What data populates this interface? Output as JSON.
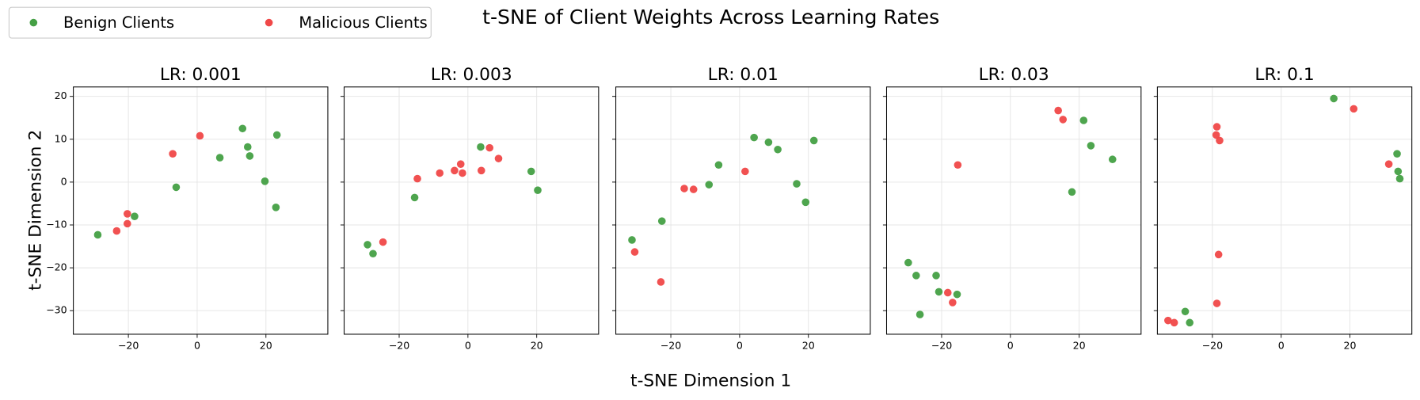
{
  "title": "t-SNE of Client Weights Across Learning Rates",
  "xlabel": "t-SNE Dimension 1",
  "ylabel": "t-SNE Dimension 2",
  "legend": "upper left",
  "chart_data": [
    {
      "type": "scatter",
      "title": "LR: 0.001",
      "xlim": [
        -36,
        38
      ],
      "ylim": [
        -35.5,
        22.2
      ],
      "xticks": [
        {
          "value": -20,
          "label": "−20"
        },
        0,
        20
      ],
      "yticks": [
        {
          "value": -30,
          "label": "−30"
        },
        {
          "value": -20,
          "label": "−20"
        },
        {
          "value": -10,
          "label": "−10"
        },
        0,
        10,
        20
      ],
      "ytick_labels": true,
      "grid": true,
      "series": [
        {
          "name": "Benign Clients",
          "color": "#45a045",
          "x": [
            13.2,
            14.7,
            15.3,
            23.2,
            6.6,
            19.7,
            22.9,
            -6.1,
            -18.2,
            -28.9
          ],
          "y": [
            12.5,
            8.2,
            6.1,
            11,
            5.7,
            0.2,
            -5.9,
            -1.2,
            -8,
            -12.3
          ]
        },
        {
          "name": "Malicious Clients",
          "color": "#f04848",
          "x": [
            0.8,
            -7.1,
            -20.3,
            -20.3,
            -23.4
          ],
          "y": [
            10.8,
            6.6,
            -7.4,
            -9.7,
            -11.4
          ]
        }
      ]
    },
    {
      "type": "scatter",
      "title": "LR: 0.003",
      "xlim": [
        -36,
        38
      ],
      "ylim": [
        -35.5,
        22.2
      ],
      "xticks": [
        {
          "value": -20,
          "label": "−20"
        },
        0,
        20
      ],
      "yticks": [
        -30,
        -20,
        -10,
        0,
        10,
        20
      ],
      "ytick_labels": false,
      "grid": true,
      "series": [
        {
          "name": "Benign Clients",
          "color": "#45a045",
          "x": [
            3.7,
            18.4,
            20.3,
            -15.5,
            -29.2,
            -27.6
          ],
          "y": [
            8.2,
            2.5,
            -1.9,
            -3.6,
            -14.6,
            -16.7
          ]
        },
        {
          "name": "Malicious Clients",
          "color": "#f04848",
          "x": [
            6.3,
            8.9,
            -14.7,
            -8.2,
            -3.9,
            -2.1,
            -1.6,
            3.9,
            -24.7
          ],
          "y": [
            8,
            5.5,
            0.8,
            2.1,
            2.7,
            4.2,
            2.1,
            2.7,
            -14
          ]
        }
      ]
    },
    {
      "type": "scatter",
      "title": "LR: 0.01",
      "xlim": [
        -36,
        38
      ],
      "ylim": [
        -35.5,
        22.2
      ],
      "xticks": [
        {
          "value": -20,
          "label": "−20"
        },
        0,
        20
      ],
      "yticks": [
        -30,
        -20,
        -10,
        0,
        10,
        20
      ],
      "ytick_labels": false,
      "grid": true,
      "series": [
        {
          "name": "Benign Clients",
          "color": "#45a045",
          "x": [
            4.2,
            8.4,
            11.1,
            21.6,
            -6.1,
            -8.9,
            16.6,
            19.2,
            -22.6,
            -31.3
          ],
          "y": [
            10.4,
            9.3,
            7.6,
            9.7,
            4,
            -0.6,
            -0.4,
            -4.7,
            -9.1,
            -13.5
          ]
        },
        {
          "name": "Malicious Clients",
          "color": "#f04848",
          "x": [
            1.6,
            -13.4,
            -16.1,
            -30.5,
            -22.9
          ],
          "y": [
            2.5,
            -1.7,
            -1.5,
            -16.3,
            -23.3
          ]
        }
      ]
    },
    {
      "type": "scatter",
      "title": "LR: 0.03",
      "xlim": [
        -36,
        38
      ],
      "ylim": [
        -35.5,
        22.2
      ],
      "xticks": [
        {
          "value": -20,
          "label": "−20"
        },
        0,
        20
      ],
      "yticks": [
        -30,
        -20,
        -10,
        0,
        10,
        20
      ],
      "ytick_labels": false,
      "grid": true,
      "series": [
        {
          "name": "Benign Clients",
          "color": "#45a045",
          "x": [
            21.3,
            23.4,
            29.7,
            17.9,
            -29.7,
            -27.4,
            -21.6,
            -20.8,
            -15.5,
            -26.3
          ],
          "y": [
            14.4,
            8.5,
            5.3,
            -2.3,
            -18.8,
            -21.8,
            -21.8,
            -25.6,
            -26.2,
            -30.9
          ]
        },
        {
          "name": "Malicious Clients",
          "color": "#f04848",
          "x": [
            13.9,
            15.3,
            -15.3,
            -18.2,
            -16.8
          ],
          "y": [
            16.7,
            14.6,
            4,
            -25.8,
            -28.1
          ]
        }
      ]
    },
    {
      "type": "scatter",
      "title": "LR: 0.1",
      "xlim": [
        -36,
        38
      ],
      "ylim": [
        -35.5,
        22.2
      ],
      "xticks": [
        {
          "value": -20,
          "label": "−20"
        },
        0,
        20
      ],
      "yticks": [
        -30,
        -20,
        -10,
        0,
        10,
        20
      ],
      "ytick_labels": false,
      "grid": true,
      "series": [
        {
          "name": "Benign Clients",
          "color": "#45a045",
          "x": [
            15.3,
            33.7,
            34,
            34.5,
            -27.9,
            -26.6
          ],
          "y": [
            19.5,
            6.6,
            2.5,
            0.8,
            -30.2,
            -32.8
          ]
        },
        {
          "name": "Malicious Clients",
          "color": "#f04848",
          "x": [
            21.1,
            -18.7,
            -18.9,
            -17.9,
            31.3,
            -18.2,
            -18.7,
            -32.9,
            -31.1
          ],
          "y": [
            17.1,
            12.9,
            11,
            9.7,
            4.2,
            -16.9,
            -28.3,
            -32.3,
            -32.8
          ]
        }
      ]
    }
  ]
}
